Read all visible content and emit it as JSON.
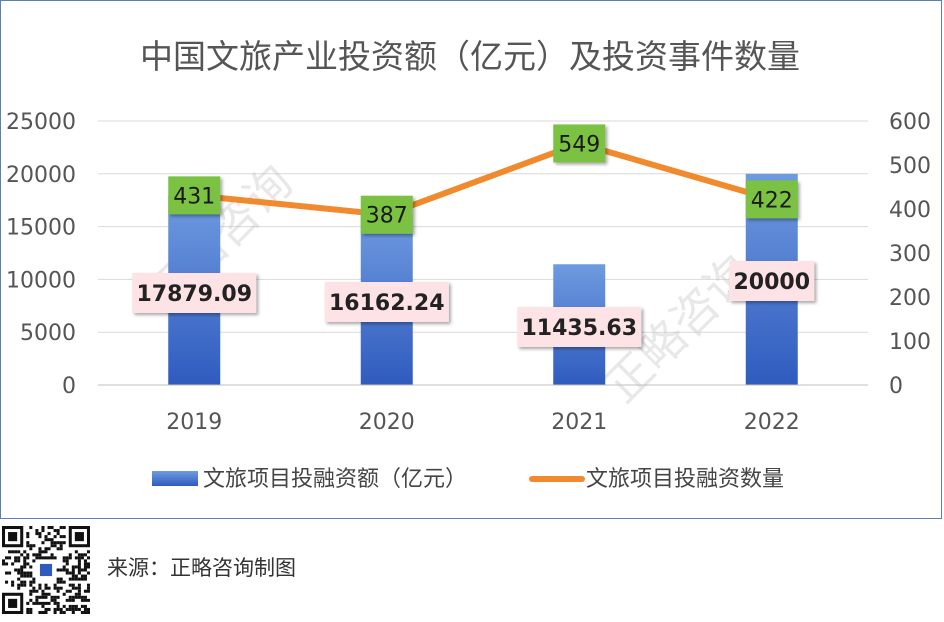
{
  "chart_data": {
    "type": "bar",
    "title": "中国文旅产业投资额（亿元）及投资事件数量",
    "categories": [
      "2019",
      "2020",
      "2021",
      "2022"
    ],
    "series": [
      {
        "name": "文旅项目投融资额（亿元）",
        "type": "bar",
        "axis": "left",
        "values": [
          17879.09,
          16162.24,
          11435.63,
          20000
        ],
        "labels": [
          "17879.09",
          "16162.24",
          "11435.63",
          "20000"
        ]
      },
      {
        "name": "文旅项目投融资数量",
        "type": "line",
        "axis": "right",
        "values": [
          431,
          387,
          549,
          422
        ],
        "labels": [
          "431",
          "387",
          "549",
          "422"
        ]
      }
    ],
    "y_left": {
      "min": 0,
      "max": 25000,
      "ticks": [
        "0",
        "5000",
        "10000",
        "15000",
        "20000",
        "25000"
      ]
    },
    "y_right": {
      "min": 0,
      "max": 600,
      "ticks": [
        "0",
        "100",
        "200",
        "300",
        "400",
        "500",
        "600"
      ]
    },
    "grid": true,
    "legend": "bottom",
    "colors": {
      "bar_top": "#6f9be0",
      "bar_bottom": "#2f5bbf",
      "line": "#f08a2c",
      "line_label_bg": "#7cc242",
      "bar_label_bg": "#fde3e5",
      "grid": "#d9d9d9",
      "frame": "#5b7fb0"
    },
    "watermark": "正略咨询"
  },
  "footer": {
    "source": "来源：正略咨询制图",
    "qr_icon": "qr-code-icon"
  }
}
